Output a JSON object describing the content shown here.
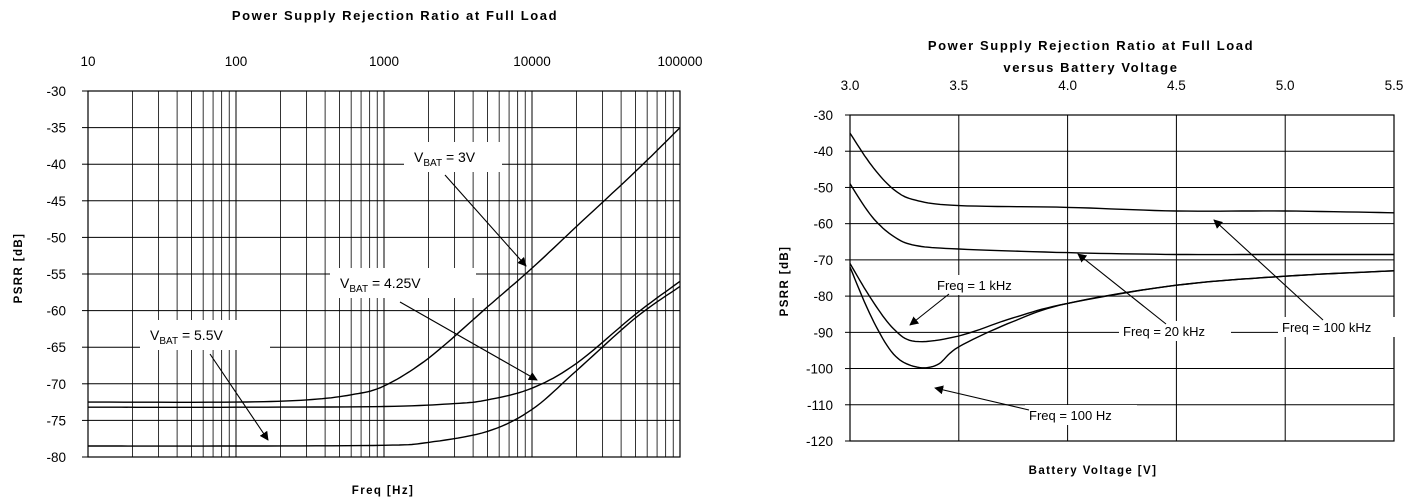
{
  "chart_data": [
    {
      "type": "line",
      "title": "Power Supply Rejection Ratio at Full Load",
      "subtitle": "",
      "xlabel": "Freq [Hz]",
      "ylabel": "PSRR [dB]",
      "xscale": "log",
      "xlim": [
        10,
        100000
      ],
      "ylim": [
        -80,
        -30
      ],
      "x_ticks": [
        "10",
        "100",
        "1000",
        "10000",
        "100000"
      ],
      "y_ticks": [
        "-30",
        "-35",
        "-40",
        "-45",
        "-50",
        "-55",
        "-60",
        "-65",
        "-70",
        "-75",
        "-80"
      ],
      "x_axis_position": "top",
      "grid": true,
      "series": [
        {
          "x": [
            10,
            100,
            300,
            600,
            1000,
            2000,
            5000,
            10000,
            20000,
            50000,
            100000
          ],
          "y": [
            -72.5,
            -72.5,
            -72.2,
            -71.5,
            -70.3,
            -66.5,
            -59.5,
            -54.2,
            -48.5,
            -41,
            -35
          ]
        },
        {
          "x": [
            10,
            100,
            1000,
            3000,
            5000,
            10000,
            20000,
            50000,
            100000
          ],
          "y": [
            -73.2,
            -73.2,
            -73.1,
            -72.7,
            -72.2,
            -70.6,
            -67.2,
            -60.5,
            -56
          ]
        },
        {
          "x": [
            10,
            100,
            1000,
            2000,
            5000,
            10000,
            20000,
            50000,
            100000
          ],
          "y": [
            -78.5,
            -78.5,
            -78.4,
            -78,
            -76.5,
            -73.5,
            -68.2,
            -61,
            -56.7
          ]
        }
      ],
      "annotations": [
        {
          "main": "V",
          "sub": "BAT",
          "rest": " = 3V"
        },
        {
          "main": "V",
          "sub": "BAT",
          "rest": " = 4.25V"
        },
        {
          "main": "V",
          "sub": "BAT",
          "rest": " = 5.5V"
        }
      ]
    },
    {
      "type": "line",
      "title": "Power Supply Rejection Ratio at Full Load",
      "subtitle": "versus Battery Voltage",
      "xlabel": "Battery Voltage [V]",
      "ylabel": "PSRR [dB]",
      "xscale": "linear",
      "xlim": [
        3.0,
        5.5
      ],
      "ylim": [
        -120,
        -30
      ],
      "x_ticks": [
        "3.0",
        "3.5",
        "4.0",
        "4.5",
        "5.0",
        "5.5"
      ],
      "y_ticks": [
        "-30",
        "-40",
        "-50",
        "-60",
        "-70",
        "-80",
        "-90",
        "-100",
        "-110",
        "-120"
      ],
      "x_axis_position": "top",
      "grid": true,
      "series": [
        {
          "name": "Freq = 100 kHz",
          "x": [
            3.0,
            3.1,
            3.2,
            3.3,
            3.5,
            4.0,
            4.5,
            5.0,
            5.5
          ],
          "y": [
            -35,
            -44,
            -50.5,
            -53.5,
            -55,
            -55.5,
            -56.5,
            -56.5,
            -57
          ]
        },
        {
          "name": "Freq = 20 kHz",
          "x": [
            3.0,
            3.1,
            3.2,
            3.3,
            3.5,
            4.0,
            4.5,
            5.0,
            5.5
          ],
          "y": [
            -49,
            -58,
            -63.5,
            -66,
            -67,
            -68,
            -68.5,
            -68.5,
            -68.5
          ]
        },
        {
          "name": "Freq = 1 kHz",
          "x": [
            3.0,
            3.1,
            3.2,
            3.3,
            3.5,
            3.75,
            4.0,
            4.5,
            5.0,
            5.5
          ],
          "y": [
            -71,
            -81,
            -89,
            -92.5,
            -91,
            -86,
            -82,
            -77,
            -74.5,
            -73
          ]
        },
        {
          "name": "Freq = 100 Hz",
          "x": [
            3.0,
            3.1,
            3.2,
            3.3,
            3.4,
            3.5,
            3.75,
            4.0,
            4.5,
            5.0,
            5.5
          ],
          "y": [
            -72,
            -86,
            -96,
            -99.5,
            -99,
            -94,
            -87,
            -82,
            -77,
            -74.5,
            -73
          ]
        }
      ],
      "annotations": [
        {
          "text": "Freq = 1 kHz"
        },
        {
          "text": "Freq = 20 kHz"
        },
        {
          "text": "Freq = 100 kHz"
        },
        {
          "text": "Freq = 100 Hz"
        }
      ]
    }
  ]
}
